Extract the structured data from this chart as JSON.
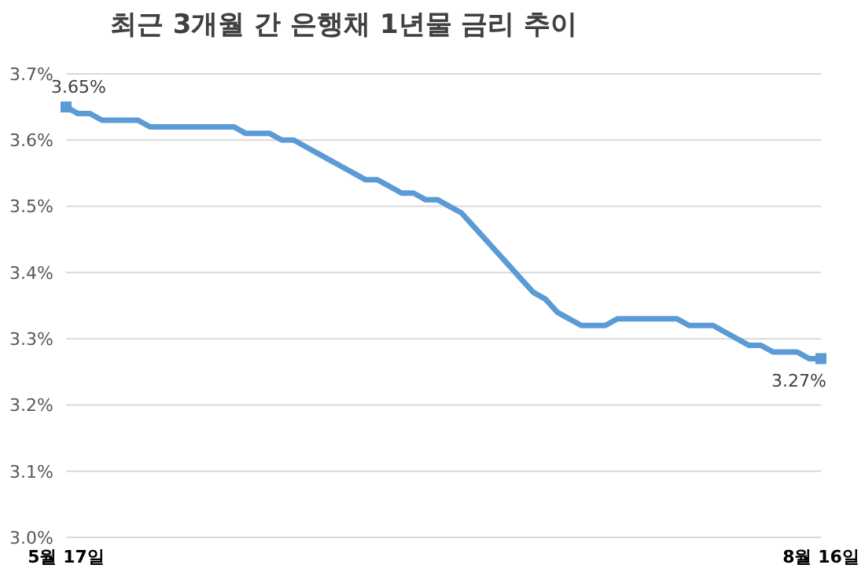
{
  "chart_data": {
    "type": "line",
    "title": "최근 3개월 간 은행채 1년물 금리 추이",
    "categories": [
      "5월 17일",
      null,
      null,
      null,
      null,
      null,
      null,
      null,
      null,
      null,
      null,
      null,
      null,
      null,
      null,
      null,
      null,
      null,
      null,
      null,
      null,
      null,
      null,
      null,
      null,
      null,
      null,
      null,
      null,
      null,
      null,
      null,
      null,
      null,
      null,
      null,
      null,
      null,
      null,
      null,
      null,
      null,
      null,
      null,
      null,
      null,
      null,
      null,
      null,
      null,
      null,
      null,
      null,
      null,
      null,
      null,
      null,
      null,
      null,
      null,
      null,
      null,
      null,
      "8월 16일"
    ],
    "series": [
      {
        "color": "#5b9bd5",
        "values": [
          3.65,
          3.64,
          3.64,
          3.63,
          3.63,
          3.63,
          3.63,
          3.62,
          3.62,
          3.62,
          3.62,
          3.62,
          3.62,
          3.62,
          3.62,
          3.61,
          3.61,
          3.61,
          3.6,
          3.6,
          3.59,
          3.58,
          3.57,
          3.56,
          3.55,
          3.54,
          3.54,
          3.53,
          3.52,
          3.52,
          3.51,
          3.51,
          3.5,
          3.49,
          3.47,
          3.45,
          3.43,
          3.41,
          3.39,
          3.37,
          3.36,
          3.34,
          3.33,
          3.32,
          3.32,
          3.32,
          3.33,
          3.33,
          3.33,
          3.33,
          3.33,
          3.33,
          3.32,
          3.32,
          3.32,
          3.31,
          3.3,
          3.29,
          3.29,
          3.28,
          3.28,
          3.28,
          3.27,
          3.27
        ],
        "value_labels": [
          "3.65%",
          null,
          null,
          null,
          null,
          null,
          null,
          null,
          null,
          null,
          null,
          null,
          null,
          null,
          null,
          null,
          null,
          null,
          null,
          null,
          null,
          null,
          null,
          null,
          null,
          null,
          null,
          null,
          null,
          null,
          null,
          null,
          null,
          null,
          null,
          null,
          null,
          null,
          null,
          null,
          null,
          null,
          null,
          null,
          null,
          null,
          null,
          null,
          null,
          null,
          null,
          null,
          null,
          null,
          null,
          null,
          null,
          null,
          null,
          null,
          null,
          null,
          null,
          "3.27%"
        ]
      }
    ],
    "ylim": [
      3.0,
      3.7
    ],
    "yticks": [
      {
        "value": 3.0,
        "label": "3.0%"
      },
      {
        "value": 3.1,
        "label": "3.1%"
      },
      {
        "value": 3.2,
        "label": "3.2%"
      },
      {
        "value": 3.3,
        "label": "3.3%"
      },
      {
        "value": 3.4,
        "label": "3.4%"
      },
      {
        "value": 3.5,
        "label": "3.5%"
      },
      {
        "value": 3.6,
        "label": "3.6%"
      },
      {
        "value": 3.7,
        "label": "3.7%"
      }
    ],
    "grid": "y",
    "legend": false
  }
}
